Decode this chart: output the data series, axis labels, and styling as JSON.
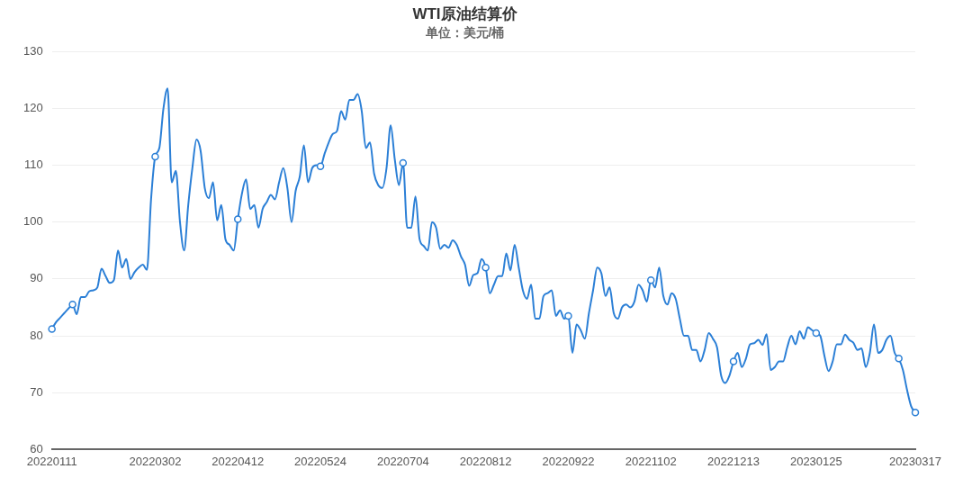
{
  "chart_data": {
    "type": "line",
    "title": "WTI原油结算价",
    "subtitle": "单位：美元/桶",
    "categories": [
      "20220111",
      null,
      null,
      null,
      null,
      null,
      null,
      null,
      null,
      null,
      null,
      null,
      null,
      null,
      null,
      null,
      null,
      null,
      null,
      null,
      null,
      null,
      null,
      null,
      null,
      "20220302",
      null,
      null,
      null,
      null,
      null,
      null,
      null,
      null,
      null,
      null,
      null,
      null,
      null,
      null,
      null,
      null,
      null,
      null,
      null,
      "20220412",
      null,
      null,
      null,
      null,
      null,
      null,
      null,
      null,
      null,
      null,
      null,
      null,
      null,
      null,
      null,
      null,
      null,
      null,
      null,
      "20220524",
      null,
      null,
      null,
      null,
      null,
      null,
      null,
      null,
      null,
      null,
      null,
      null,
      null,
      null,
      null,
      null,
      null,
      null,
      null,
      "20220704",
      null,
      null,
      null,
      null,
      null,
      null,
      null,
      null,
      null,
      null,
      null,
      null,
      null,
      null,
      null,
      null,
      null,
      null,
      null,
      "20220812",
      null,
      null,
      null,
      null,
      null,
      null,
      null,
      null,
      null,
      null,
      null,
      null,
      null,
      null,
      null,
      null,
      null,
      null,
      null,
      "20220922",
      null,
      null,
      null,
      null,
      null,
      null,
      null,
      null,
      null,
      null,
      null,
      null,
      null,
      null,
      null,
      null,
      null,
      null,
      null,
      "20221102",
      null,
      null,
      null,
      null,
      null,
      null,
      null,
      null,
      null,
      null,
      null,
      null,
      null,
      null,
      null,
      null,
      null,
      null,
      null,
      "20221213",
      null,
      null,
      null,
      null,
      null,
      null,
      null,
      null,
      null,
      null,
      null,
      null,
      null,
      null,
      null,
      null,
      null,
      null,
      null,
      "20230125",
      null,
      null,
      null,
      null,
      null,
      null,
      null,
      null,
      null,
      null,
      null,
      null,
      null,
      null,
      null,
      null,
      null,
      null,
      null,
      null,
      null,
      null,
      null,
      "20230317"
    ],
    "series": [
      {
        "type": "line",
        "color": "#2b7fd6",
        "values": [
          81.2,
          82.4,
          83.2,
          84,
          84.8,
          85.5,
          83.8,
          86.8,
          86.8,
          87.8,
          88,
          88.5,
          91.8,
          90.5,
          89.3,
          89.8,
          95,
          92,
          93.5,
          90,
          91.2,
          92,
          92.5,
          91.6,
          104,
          111.5,
          113,
          120,
          123.5,
          107,
          109,
          100,
          95,
          103,
          109.5,
          114.5,
          112.5,
          106,
          104.2,
          107,
          100.3,
          103,
          97,
          96,
          95,
          100.5,
          105,
          107.5,
          102.3,
          103,
          99,
          102.3,
          103.5,
          104.8,
          104,
          107,
          109.5,
          106,
          100,
          105.5,
          108,
          113.5,
          107,
          109.5,
          110,
          109.8,
          112,
          114,
          115.5,
          116,
          119.5,
          118,
          121.5,
          121.5,
          122.5,
          119.5,
          113,
          114,
          108.5,
          106.5,
          106,
          109.5,
          117,
          111,
          106.5,
          110.4,
          99,
          99,
          104.5,
          97,
          95.8,
          95,
          100,
          99,
          95.3,
          96,
          95.5,
          96.8,
          96,
          94,
          92.5,
          88.8,
          90.7,
          91,
          93.5,
          92,
          87.5,
          89,
          90.5,
          90.5,
          94.5,
          91.5,
          96,
          92,
          88,
          86.5,
          89,
          83,
          83,
          87,
          87.5,
          88,
          83.5,
          84.5,
          83,
          83.5,
          77,
          82,
          81,
          79.5,
          84,
          88,
          92,
          91,
          87,
          88.5,
          84,
          83,
          85,
          85.5,
          85,
          86,
          89,
          88,
          86,
          89.8,
          88.5,
          92,
          87,
          85.5,
          87.5,
          86.5,
          83,
          80,
          80,
          77.5,
          77.5,
          75.5,
          77.5,
          80.5,
          79.5,
          78,
          73,
          71.7,
          73,
          75.5,
          77,
          74.5,
          76,
          78.5,
          78.7,
          79.3,
          78.4,
          80.3,
          74,
          74.5,
          75.5,
          75.5,
          78,
          80,
          78.5,
          80.8,
          79.5,
          81.5,
          81,
          80.5,
          80,
          76.5,
          73.8,
          75.5,
          78.5,
          78.5,
          80.2,
          79.3,
          78.8,
          77.5,
          77.8,
          74.5,
          77,
          82,
          77,
          77.5,
          79.3,
          80,
          77,
          76,
          74,
          70.5,
          67.6,
          66.5
        ]
      },
      {
        "type": "scatter",
        "color": "#2b7fd6",
        "marker": "circle",
        "values": [
          81.2,
          null,
          null,
          null,
          null,
          85.5,
          null,
          null,
          null,
          null,
          null,
          null,
          null,
          null,
          null,
          null,
          null,
          null,
          null,
          null,
          null,
          null,
          null,
          null,
          null,
          111.5,
          null,
          null,
          null,
          null,
          null,
          null,
          null,
          null,
          null,
          null,
          null,
          null,
          null,
          null,
          null,
          null,
          null,
          null,
          null,
          100.5,
          null,
          null,
          null,
          null,
          null,
          null,
          null,
          null,
          null,
          null,
          null,
          null,
          null,
          null,
          null,
          null,
          null,
          null,
          null,
          109.8,
          null,
          null,
          null,
          null,
          null,
          null,
          null,
          null,
          null,
          null,
          null,
          null,
          null,
          null,
          null,
          null,
          null,
          null,
          null,
          110.4,
          null,
          null,
          null,
          null,
          null,
          null,
          null,
          null,
          null,
          null,
          null,
          null,
          null,
          null,
          null,
          null,
          null,
          null,
          null,
          92,
          null,
          null,
          null,
          null,
          null,
          null,
          null,
          null,
          null,
          null,
          null,
          null,
          null,
          null,
          null,
          null,
          null,
          null,
          null,
          83.5,
          null,
          null,
          null,
          null,
          null,
          null,
          null,
          null,
          null,
          null,
          null,
          null,
          null,
          null,
          null,
          null,
          null,
          null,
          null,
          89.8,
          null,
          null,
          null,
          null,
          null,
          null,
          null,
          null,
          null,
          null,
          null,
          null,
          null,
          null,
          null,
          null,
          null,
          null,
          null,
          75.5,
          null,
          null,
          null,
          null,
          null,
          null,
          null,
          null,
          null,
          null,
          null,
          null,
          null,
          null,
          null,
          null,
          null,
          null,
          null,
          80.5,
          null,
          null,
          null,
          null,
          null,
          null,
          null,
          null,
          null,
          null,
          null,
          null,
          null,
          null,
          null,
          null,
          null,
          null,
          null,
          76,
          null,
          null,
          null,
          66.5
        ]
      }
    ],
    "ylim": [
      60,
      130
    ],
    "yticks": [
      60,
      70,
      80,
      90,
      100,
      110,
      120,
      130
    ],
    "grid": "y",
    "legend": false
  }
}
